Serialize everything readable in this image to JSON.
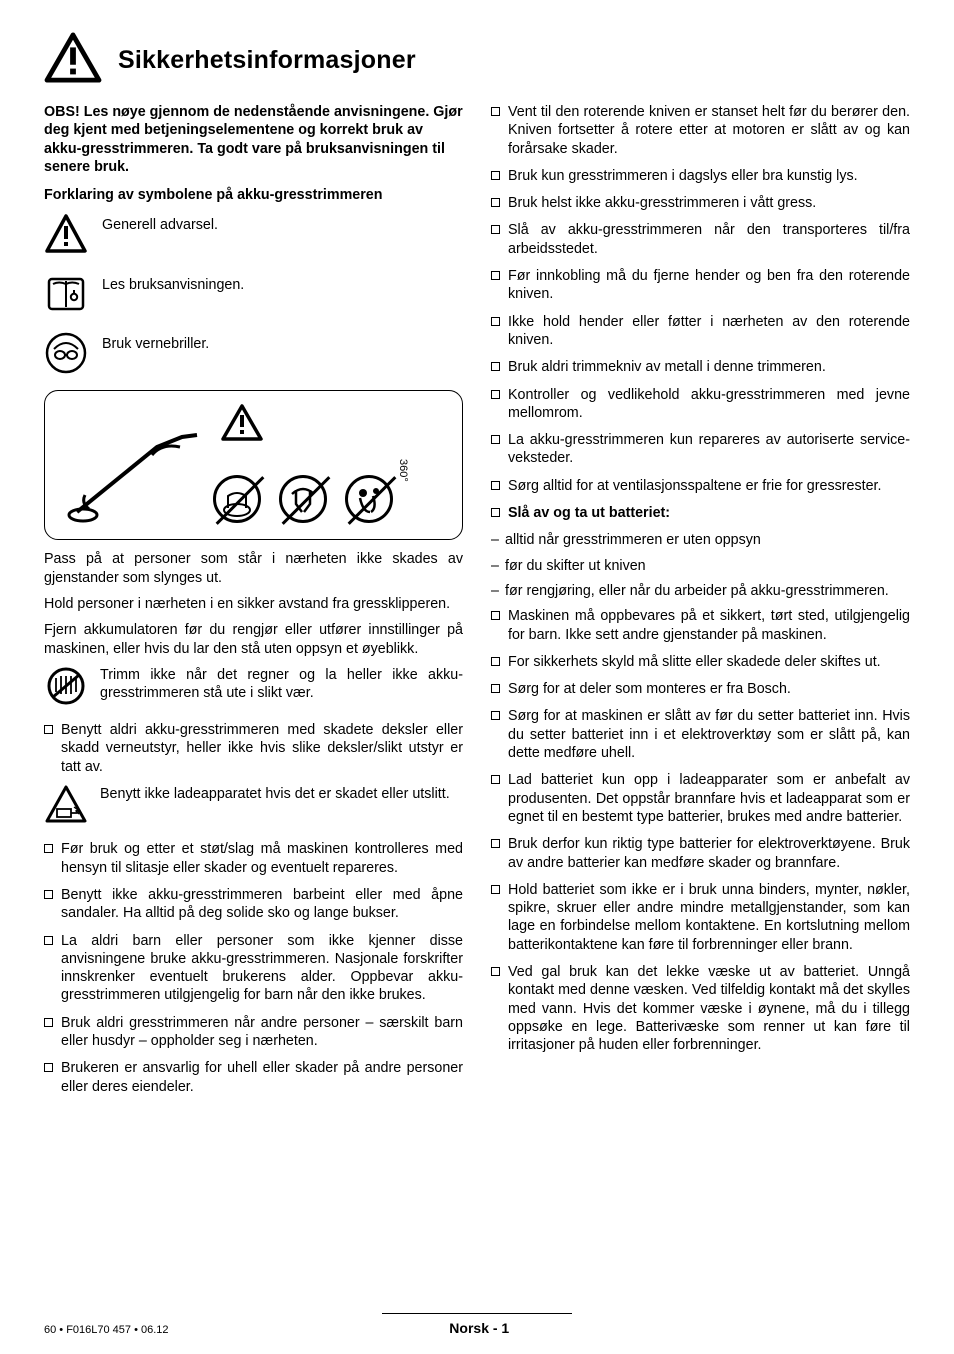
{
  "title": "Sikkerhetsinformasjoner",
  "intro": "OBS! Les nøye gjennom de nedenstående anvisningene. Gjør deg kjent med betjeningselementene og korrekt bruk av akku-gresstrimmeren. Ta godt vare på bruksanvisningen til senere bruk.",
  "symbolsHead": "Forklaring av symbolene på akku-gresstrimmeren",
  "symbols": [
    {
      "label": "Generell advarsel."
    },
    {
      "label": "Les bruksanvisningen."
    },
    {
      "label": "Bruk vernebriller."
    }
  ],
  "diagram": {
    "rotation": "360°"
  },
  "leftParas": [
    "Pass på at personer som står i nærheten ikke skades av gjenstander som slynges ut.",
    "Hold personer i nærheten i en sikker avstand fra gressklipperen.",
    "Fjern akkumulatoren før du rengjør eller utfører innstillinger på maskinen, eller hvis du lar den stå uten oppsyn et øyeblikk."
  ],
  "rainText": "Trimm ikke når det regner og la heller ikke akku-gresstrimmeren stå ute i slikt vær.",
  "leftBullets1": [
    "Benytt aldri akku-gresstrimmeren med skadete deksler eller skadd verneutstyr, heller ikke hvis slike deksler/slikt utstyr er tatt av."
  ],
  "chargerText": "Benytt ikke ladeapparatet hvis det er skadet eller utslitt.",
  "leftBullets2": [
    "Før bruk og etter et støt/slag må maskinen kontrolleres med hensyn til slitasje eller skader og eventuelt repareres.",
    "Benytt ikke akku-gresstrimmeren barbeint eller med åpne sandaler. Ha alltid på deg solide sko og lange bukser.",
    "La aldri barn eller personer som ikke kjenner disse anvisningene bruke akku-gresstrimmeren. Nasjonale forskrifter innskrenker eventuelt brukerens alder. Oppbevar akku-gresstrimmeren utilgjengelig for barn når den ikke brukes.",
    "Bruk aldri gresstrimmeren når andre personer – særskilt barn eller husdyr – oppholder seg i nærheten.",
    "Brukeren er ansvarlig for uhell eller skader på andre personer eller deres eiendeler."
  ],
  "rightBulletsA": [
    "Vent til den roterende kniven er stanset helt før du berører den. Kniven fortsetter å rotere etter at motoren er slått av og kan forårsake skader.",
    "Bruk kun gresstrimmeren i dagslys eller bra kunstig lys.",
    "Bruk helst ikke akku-gresstrimmeren i vått gress.",
    "Slå av akku-gresstrimmeren når den transporteres til/fra arbeidsstedet.",
    "Før innkobling må du fjerne hender og ben fra den roterende kniven.",
    "Ikke hold hender eller føtter i nærheten av den roterende kniven.",
    "Bruk aldri trimmekniv av metall i denne trimmeren.",
    "Kontroller og vedlikehold akku-gresstrimmeren med jevne mellomrom.",
    "La akku-gresstrimmeren kun repareres av autoriserte service-veksteder.",
    "Sørg alltid for at ventilasjonsspaltene er frie for gressrester."
  ],
  "batteryHead": "Slå av og ta ut batteriet:",
  "dashes": [
    "alltid når gresstrimmeren er uten oppsyn",
    "før du skifter ut kniven",
    "før rengjøring, eller når du arbeider på akku-gresstrimmeren."
  ],
  "rightBulletsB": [
    "Maskinen må oppbevares på et sikkert, tørt sted, utilgjengelig for barn. Ikke sett andre gjenstander på maskinen.",
    "For sikkerhets skyld må slitte eller skadede deler skiftes ut.",
    "Sørg for at deler som monteres er fra Bosch.",
    "Sørg for at maskinen er slått av før du setter batteriet inn. Hvis du setter batteriet inn i et elektroverktøy som er slått på, kan dette medføre uhell.",
    "Lad batteriet kun opp i ladeapparater som er anbefalt av produsenten. Det oppstår brannfare hvis et ladeapparat som er egnet til en bestemt type batterier, brukes med andre batterier.",
    "Bruk derfor kun riktig type batterier for elektroverktøyene. Bruk av andre batterier kan medføre skader og brannfare.",
    "Hold batteriet som ikke er i bruk unna binders, mynter, nøkler, spikre, skruer eller andre mindre metallgjenstander, som kan lage en forbindelse mellom kontaktene. En kortslutning mellom batterikontaktene kan føre til forbrenninger eller brann.",
    "Ved gal bruk kan det lekke væske ut av batteriet. Unngå kontakt med denne væsken. Ved tilfeldig kontakt må det skylles med vann. Hvis det kommer væske i øynene, må du i tillegg oppsøke en lege. Batterivæske som renner ut kan føre til irritasjoner på huden eller forbrenninger."
  ],
  "footer": {
    "left": "60 • F016L70 457 • 06.12",
    "center": "Norsk - 1"
  },
  "colors": {
    "text": "#000000",
    "bg": "#ffffff"
  }
}
